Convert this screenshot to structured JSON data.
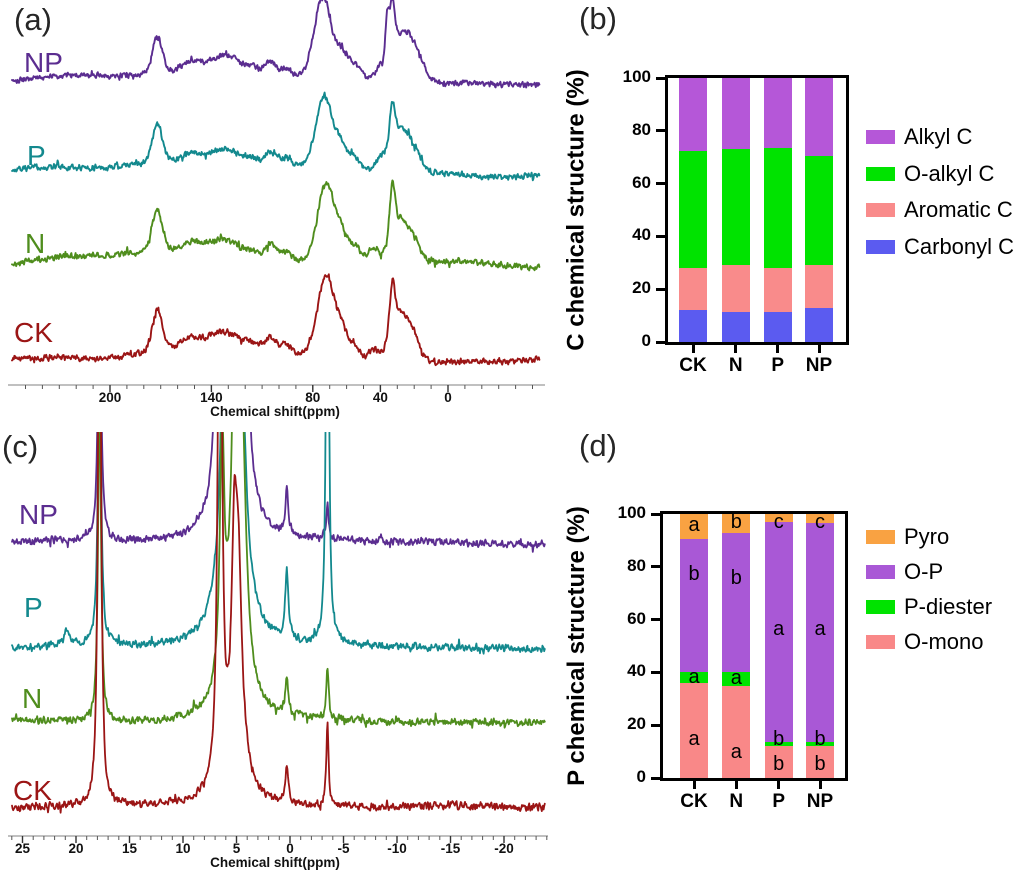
{
  "figure": {
    "panel_labels": {
      "a": "(a)",
      "b": "(b)",
      "c": "(c)",
      "d": "(d)"
    }
  },
  "chart_data": [
    {
      "panel": "a",
      "type": "line",
      "subtype": "nmr_spectrum",
      "nucleus": "13C",
      "xlabel": "Chemical shift(ppm)",
      "x_ticks": [
        200,
        140,
        80,
        40,
        0
      ],
      "x_minor_step": 10,
      "x_range": [
        258,
        -54
      ],
      "peak_shape": "gaussian",
      "peak_format": "[ppm_center, width_ppm, height_px]",
      "traces": [
        {
          "name": "NP",
          "color": "#5B2D90",
          "seed": 101,
          "peaks": [
            [
              172,
              3,
              36
            ],
            [
              152,
              5,
              9
            ],
            [
              138,
              6,
              10
            ],
            [
              128,
              6,
              13
            ],
            [
              116,
              4,
              8
            ],
            [
              105,
              3.5,
              15
            ],
            [
              96,
              3,
              8
            ],
            [
              74,
              5,
              80
            ],
            [
              63,
              3,
              20
            ],
            [
              56,
              4,
              15
            ],
            [
              40,
              3,
              12
            ],
            [
              36,
              1.1,
              42
            ],
            [
              33,
              1.5,
              52
            ],
            [
              28,
              5.5,
              46
            ],
            [
              19,
              5,
              26
            ],
            [
              155,
              42,
              13
            ]
          ]
        },
        {
          "name": "P",
          "color": "#13898E",
          "seed": 202,
          "peaks": [
            [
              172,
              3,
              38
            ],
            [
              152,
              5,
              9
            ],
            [
              138,
              6,
              10
            ],
            [
              128,
              6,
              12
            ],
            [
              116,
              4,
              8
            ],
            [
              105,
              3.5,
              14
            ],
            [
              96,
              3,
              8
            ],
            [
              73,
              5,
              72
            ],
            [
              63,
              3,
              19
            ],
            [
              56,
              4,
              14
            ],
            [
              40,
              3,
              12
            ],
            [
              33,
              1.5,
              38
            ],
            [
              29,
              5.5,
              42
            ],
            [
              20,
              4.5,
              18
            ],
            [
              155,
              42,
              13
            ]
          ]
        },
        {
          "name": "N",
          "color": "#4F8D1D",
          "seed": 303,
          "peaks": [
            [
              172,
              3,
              42
            ],
            [
              152,
              5,
              9
            ],
            [
              138,
              6,
              10
            ],
            [
              128,
              6,
              12
            ],
            [
              116,
              4,
              8
            ],
            [
              105,
              3.5,
              17
            ],
            [
              96,
              3,
              9
            ],
            [
              72,
              5,
              76
            ],
            [
              63,
              3,
              19
            ],
            [
              56,
              4,
              15
            ],
            [
              44,
              3,
              13
            ],
            [
              33,
              1.5,
              50
            ],
            [
              29,
              5,
              42
            ],
            [
              20,
              4,
              17
            ],
            [
              155,
              42,
              12
            ]
          ]
        },
        {
          "name": "CK",
          "color": "#9B1515",
          "seed": 404,
          "peaks": [
            [
              172,
              3,
              40
            ],
            [
              152,
              5,
              10
            ],
            [
              138,
              6,
              11
            ],
            [
              128,
              6,
              13
            ],
            [
              116,
              4,
              9
            ],
            [
              105,
              3.5,
              15
            ],
            [
              96,
              3,
              9
            ],
            [
              72,
              5,
              82
            ],
            [
              63,
              3,
              21
            ],
            [
              56,
              4,
              15
            ],
            [
              44,
              3,
              13
            ],
            [
              33,
              1.5,
              44
            ],
            [
              29,
              5.5,
              52
            ],
            [
              20,
              4,
              19
            ],
            [
              155,
              42,
              13
            ]
          ]
        }
      ]
    },
    {
      "panel": "b",
      "type": "bar",
      "stacked": true,
      "ylabel": "C chemical structure (%)",
      "ylim": [
        0,
        100
      ],
      "yticks": [
        0,
        20,
        40,
        60,
        80,
        100
      ],
      "categories": [
        "CK",
        "N",
        "P",
        "NP"
      ],
      "legend_position": "right",
      "series": [
        {
          "name": "Alkyl C",
          "color": "#B557D8",
          "values": [
            27.6,
            27.0,
            26.4,
            29.5
          ]
        },
        {
          "name": "O-alkyl C",
          "color": "#00E300",
          "values": [
            44.4,
            44.0,
            45.6,
            41.3
          ]
        },
        {
          "name": "Aromatic C",
          "color": "#F98B8B",
          "values": [
            16.0,
            17.5,
            16.5,
            16.2
          ]
        },
        {
          "name": "Carbonyl C",
          "color": "#5B5BF0",
          "values": [
            12.0,
            11.5,
            11.5,
            13.0
          ]
        }
      ]
    },
    {
      "panel": "c",
      "type": "line",
      "subtype": "nmr_spectrum",
      "nucleus": "31P",
      "xlabel": "Chemical shift(ppm)",
      "x_ticks": [
        25,
        20,
        15,
        10,
        5,
        0,
        -5,
        -10,
        -15,
        -20
      ],
      "x_minor_step": 1,
      "x_range": [
        26,
        -24
      ],
      "peak_shape": "lorentzian",
      "peak_format": "[ppm_center, width_ppm, height_px]",
      "traces": [
        {
          "name": "NP",
          "color": "#5B2D90",
          "seed": 505,
          "peaks": [
            [
              17.8,
              0.16,
              320
            ],
            [
              6.6,
              0.3,
              350
            ],
            [
              5.3,
              0.3,
              600
            ],
            [
              4.95,
              0.3,
              450
            ],
            [
              4.3,
              0.35,
              200
            ],
            [
              5.3,
              1.3,
              55
            ],
            [
              0.3,
              0.16,
              46
            ],
            [
              -3.5,
              0.13,
              36
            ]
          ]
        },
        {
          "name": "P",
          "color": "#13898E",
          "seed": 606,
          "peaks": [
            [
              20.9,
              0.3,
              15
            ],
            [
              17.8,
              0.16,
              340
            ],
            [
              5.95,
              0.3,
              620
            ],
            [
              5.15,
              0.28,
              600
            ],
            [
              4.5,
              0.5,
              140
            ],
            [
              5.3,
              1.4,
              65
            ],
            [
              0.3,
              0.18,
              68
            ],
            [
              -3.5,
              0.13,
              620
            ]
          ]
        },
        {
          "name": "N",
          "color": "#4F8D1D",
          "seed": 707,
          "peaks": [
            [
              17.8,
              0.16,
              330
            ],
            [
              6.35,
              0.25,
              240
            ],
            [
              5.0,
              0.35,
              480
            ],
            [
              4.4,
              0.4,
              140
            ],
            [
              5.1,
              1.2,
              70
            ],
            [
              0.3,
              0.16,
              36
            ],
            [
              -3.5,
              0.13,
              50
            ]
          ]
        },
        {
          "name": "CK",
          "color": "#9B1515",
          "seed": 808,
          "peaks": [
            [
              17.8,
              0.15,
              700
            ],
            [
              6.55,
              0.2,
              700
            ],
            [
              5.2,
              0.3,
              190
            ],
            [
              4.8,
              0.35,
              150
            ],
            [
              5.0,
              1.1,
              60
            ],
            [
              0.3,
              0.16,
              38
            ],
            [
              -3.5,
              0.12,
              85
            ]
          ]
        }
      ]
    },
    {
      "panel": "d",
      "type": "bar",
      "stacked": true,
      "ylabel": "P chemical structure (%)",
      "ylim": [
        0,
        100
      ],
      "yticks": [
        0,
        20,
        40,
        60,
        80,
        100
      ],
      "categories": [
        "CK",
        "N",
        "P",
        "NP"
      ],
      "legend_position": "right",
      "series": [
        {
          "name": "Pyro",
          "color": "#F9A242",
          "values": [
            9.5,
            7.2,
            3.2,
            3.5
          ]
        },
        {
          "name": "O-P",
          "color": "#A958D6",
          "values": [
            50.3,
            52.5,
            83.3,
            83.0
          ]
        },
        {
          "name": "P-diester",
          "color": "#00E300",
          "values": [
            4.2,
            5.3,
            1.5,
            1.5
          ]
        },
        {
          "name": "O-mono",
          "color": "#F98888",
          "values": [
            36.0,
            35.0,
            12.0,
            12.0
          ]
        }
      ],
      "annotations": [
        {
          "category": "CK",
          "text": "a",
          "y_pct": 95.5
        },
        {
          "category": "CK",
          "text": "b",
          "y_pct": 77.0
        },
        {
          "category": "CK",
          "text": "a",
          "y_pct": 38.0
        },
        {
          "category": "CK",
          "text": "a",
          "y_pct": 14.5
        },
        {
          "category": "N",
          "text": "b",
          "y_pct": 96.5
        },
        {
          "category": "N",
          "text": "b",
          "y_pct": 75.5
        },
        {
          "category": "N",
          "text": "a",
          "y_pct": 37.5
        },
        {
          "category": "N",
          "text": "a",
          "y_pct": 9.5
        },
        {
          "category": "P",
          "text": "c",
          "y_pct": 96.5
        },
        {
          "category": "P",
          "text": "a",
          "y_pct": 56.0
        },
        {
          "category": "P",
          "text": "b",
          "y_pct": 14.5
        },
        {
          "category": "P",
          "text": "b",
          "y_pct": 5.0
        },
        {
          "category": "NP",
          "text": "c",
          "y_pct": 96.5
        },
        {
          "category": "NP",
          "text": "a",
          "y_pct": 56.0
        },
        {
          "category": "NP",
          "text": "b",
          "y_pct": 14.5
        },
        {
          "category": "NP",
          "text": "b",
          "y_pct": 5.0
        }
      ]
    }
  ]
}
